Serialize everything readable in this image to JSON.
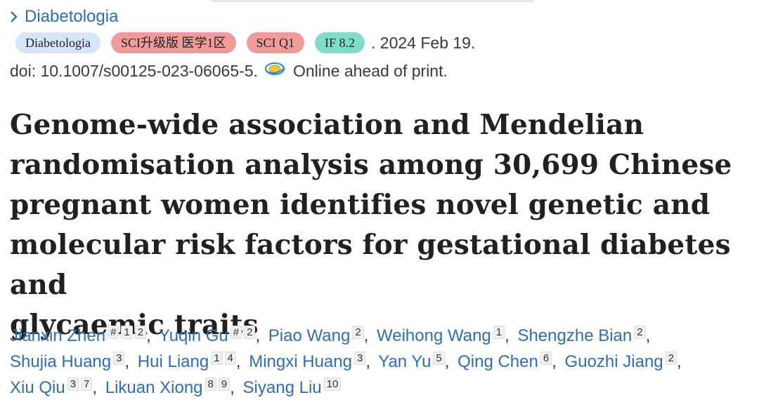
{
  "journal_link": {
    "label": "Diabetologia"
  },
  "badges": {
    "journal": "Diabetologia",
    "sci_rank": "SCI升级版 医学1区",
    "sci_q": "SCI Q1",
    "impact_factor": "IF 8.2"
  },
  "pub_date": ". 2024 Feb 19.",
  "doi": "doi: 10.1007/s00125-023-06065-5.",
  "online_status": "Online ahead of print.",
  "title_lines": [
    "Genome-wide association and Mendelian",
    "randomisation analysis among 30,699 Chinese",
    "pregnant women identifies novel genetic and",
    "molecular risk factors for gestational diabetes and",
    "glycaemic traits"
  ],
  "authors": [
    {
      "name": "Jianxin Zhen",
      "sups": [
        "#",
        "1",
        "2"
      ]
    },
    {
      "name": "Yuqin Gu",
      "sups": [
        "#",
        "2"
      ]
    },
    {
      "name": "Piao Wang",
      "sups": [
        "2"
      ]
    },
    {
      "name": "Weihong Wang",
      "sups": [
        "1"
      ]
    },
    {
      "name": "Shengzhe Bian",
      "sups": [
        "2"
      ]
    },
    {
      "name": "Shujia Huang",
      "sups": [
        "3"
      ]
    },
    {
      "name": "Hui Liang",
      "sups": [
        "1",
        "4"
      ]
    },
    {
      "name": "Mingxi Huang",
      "sups": [
        "3"
      ]
    },
    {
      "name": "Yan Yu",
      "sups": [
        "5"
      ]
    },
    {
      "name": "Qing Chen",
      "sups": [
        "6"
      ]
    },
    {
      "name": "Guozhi Jiang",
      "sups": [
        "2"
      ]
    },
    {
      "name": "Xiu Qiu",
      "sups": [
        "3",
        "7"
      ]
    },
    {
      "name": "Likuan Xiong",
      "sups": [
        "8",
        "9"
      ]
    },
    {
      "name": "Siyang Liu",
      "sups": [
        "10"
      ]
    }
  ],
  "icons": {
    "journal_link": "chevron-right-icon",
    "online": "online-ahead-of-print-icon"
  },
  "colors": {
    "link": "#2f6db5",
    "badge_blue": "#d6e6f8",
    "badge_red": "#f19a9a",
    "badge_teal": "#7fdcc8"
  }
}
